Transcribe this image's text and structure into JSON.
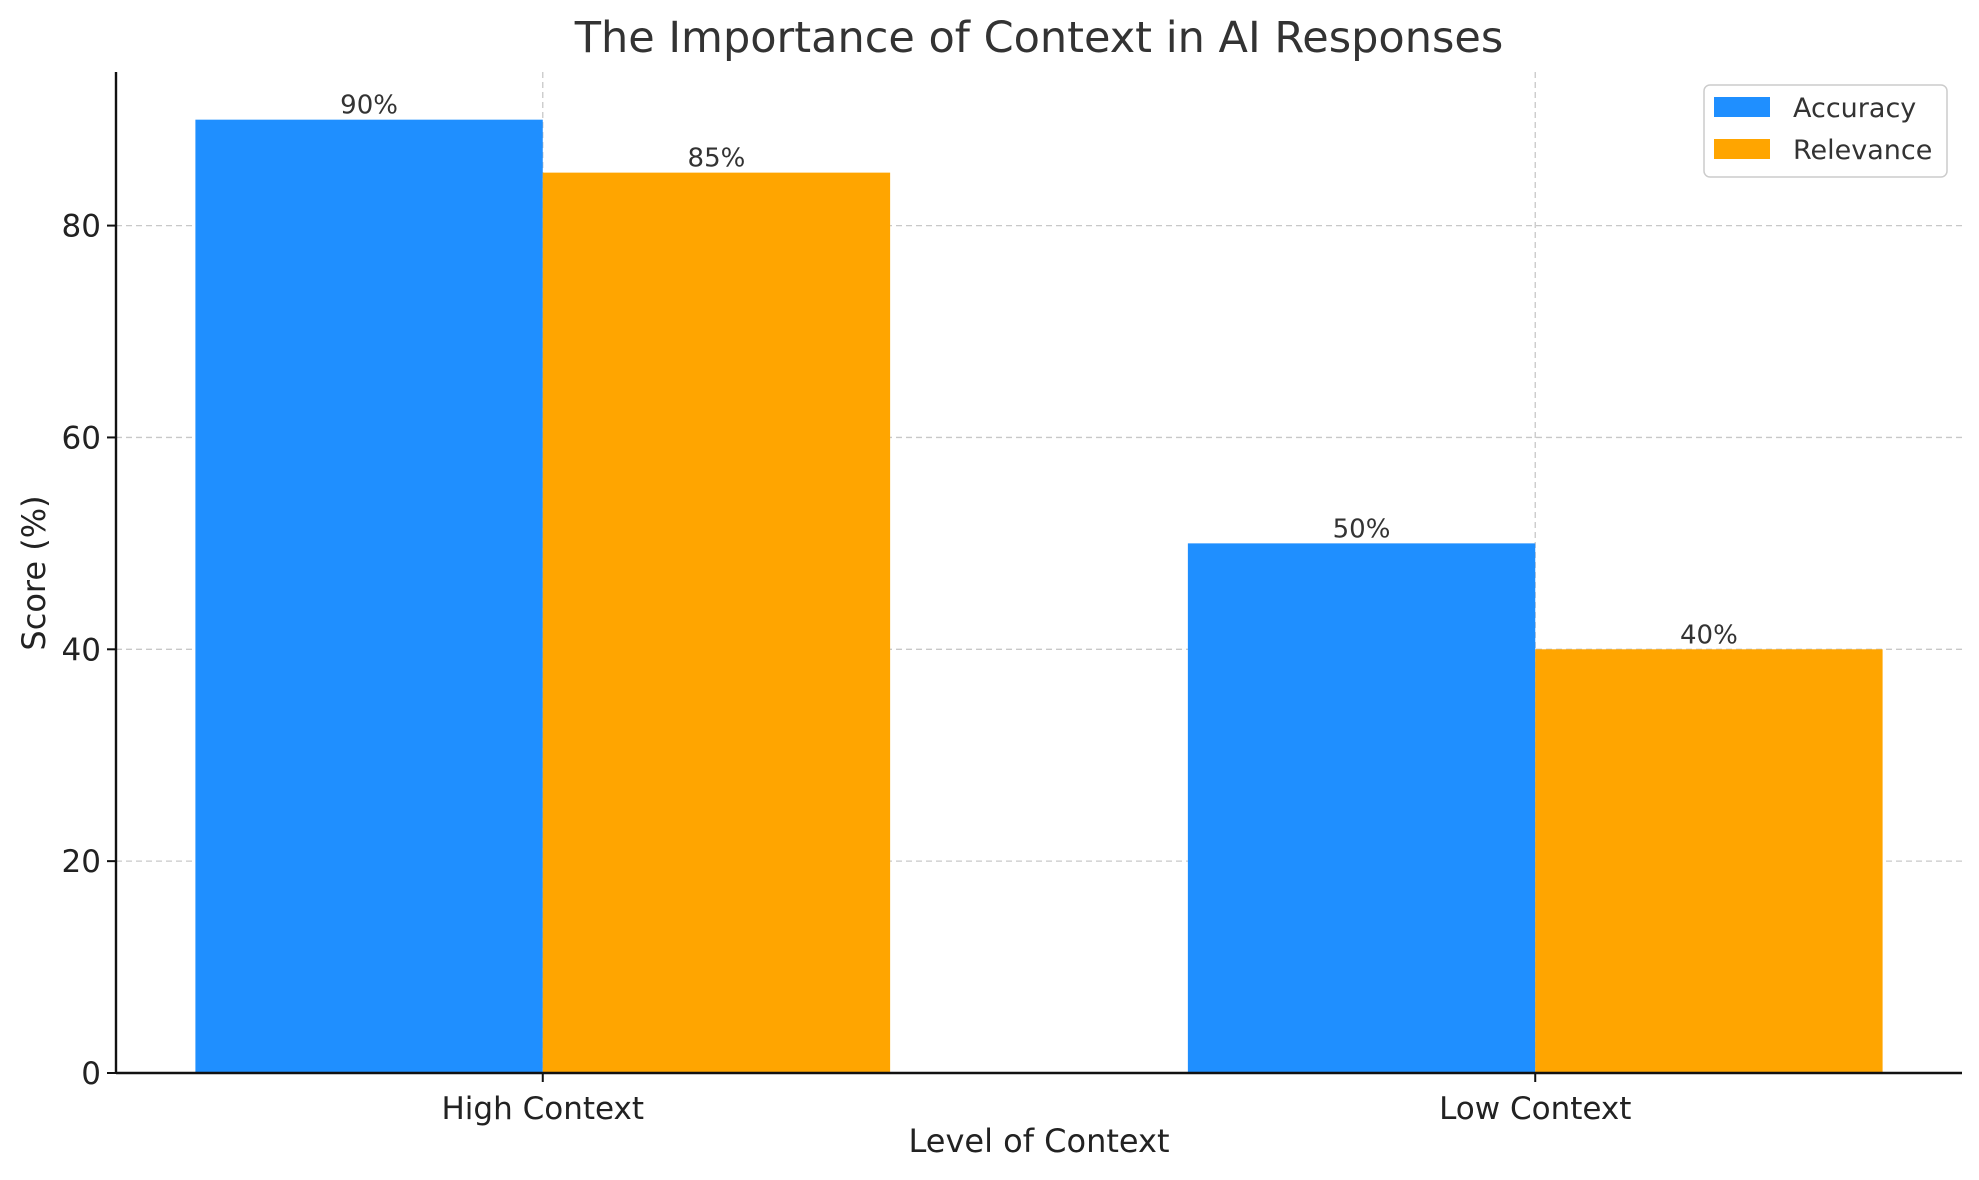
{
  "chart_data": {
    "type": "bar",
    "title": "The Importance of Context in AI Responses",
    "xlabel": "Level of Context",
    "ylabel": "Score (%)",
    "categories": [
      "High Context",
      "Low Context"
    ],
    "series": [
      {
        "name": "Accuracy",
        "values": [
          90,
          50
        ],
        "color": "#1f8fff",
        "labels": [
          "90%",
          "50%"
        ]
      },
      {
        "name": "Relevance",
        "values": [
          85,
          40
        ],
        "color": "#ffa500",
        "labels": [
          "85%",
          "40%"
        ]
      }
    ],
    "ylim": [
      0,
      94.5
    ],
    "yticks": [
      0,
      20,
      40,
      60,
      80
    ],
    "grid": true,
    "legend_position": "top-right"
  }
}
